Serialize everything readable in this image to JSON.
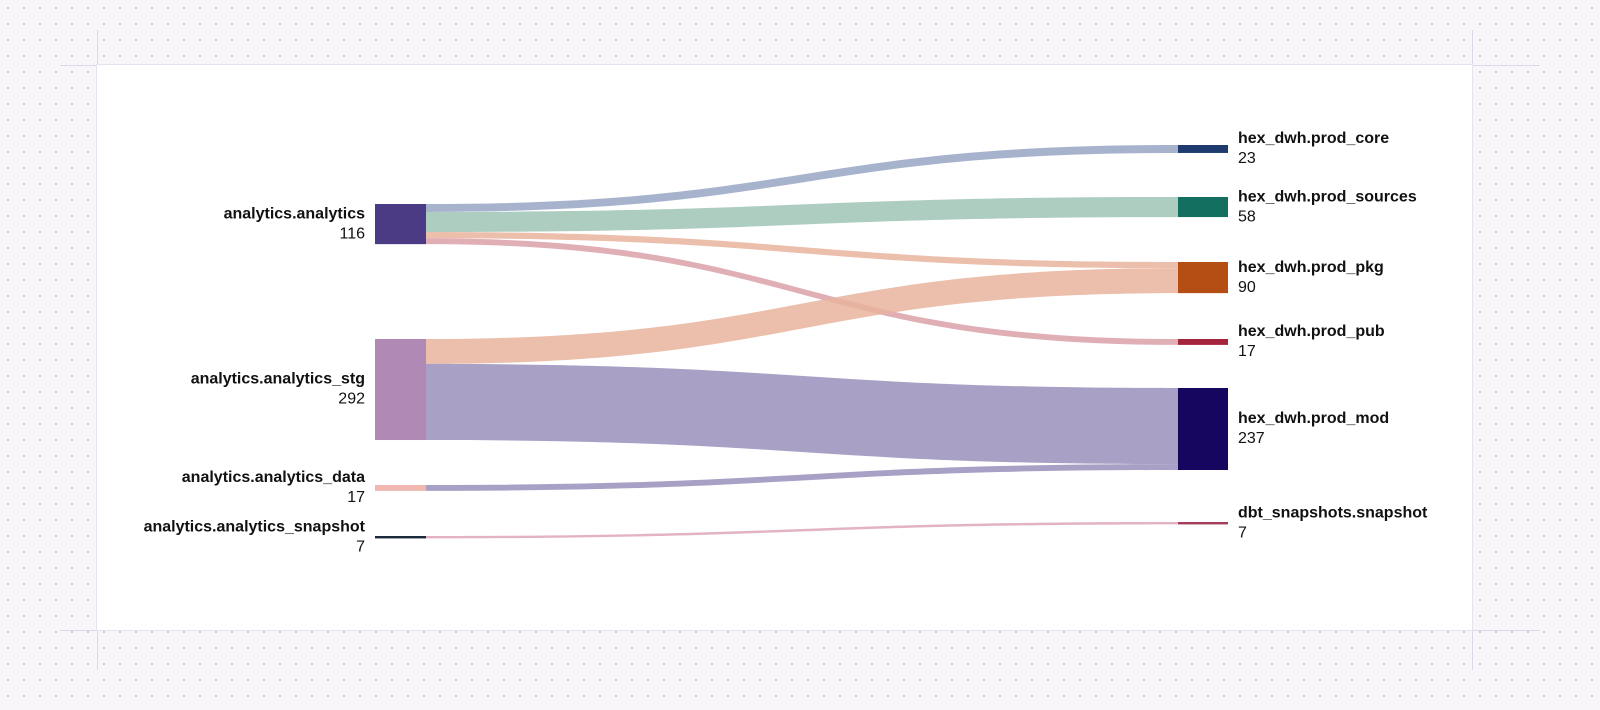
{
  "chart_data": {
    "type": "sankey",
    "nodes": [
      {
        "name": "analytics.analytics",
        "value": 116,
        "color": "#4b3b85",
        "side": "left"
      },
      {
        "name": "analytics.analytics_stg",
        "value": 292,
        "color": "#b08ab5",
        "side": "left"
      },
      {
        "name": "analytics.analytics_data",
        "value": 17,
        "color": "#f0b8b0",
        "side": "left"
      },
      {
        "name": "analytics.analytics_snapshot",
        "value": 7,
        "color": "#1a2a3a",
        "side": "left"
      },
      {
        "name": "hex_dwh.prod_core",
        "value": 23,
        "color": "#1e3a6e",
        "side": "right"
      },
      {
        "name": "hex_dwh.prod_sources",
        "value": 58,
        "color": "#137060",
        "side": "right"
      },
      {
        "name": "hex_dwh.prod_pkg",
        "value": 90,
        "color": "#b54e14",
        "side": "right"
      },
      {
        "name": "hex_dwh.prod_pub",
        "value": 17,
        "color": "#a3243c",
        "side": "right"
      },
      {
        "name": "hex_dwh.prod_mod",
        "value": 237,
        "color": "#160660",
        "side": "right"
      },
      {
        "name": "dbt_snapshots.snapshot",
        "value": 7,
        "color": "#a33d5a",
        "side": "right"
      }
    ],
    "links": [
      {
        "source": "analytics.analytics",
        "target": "hex_dwh.prod_core",
        "value": 23,
        "color": "#98a6c4"
      },
      {
        "source": "analytics.analytics",
        "target": "hex_dwh.prod_sources",
        "value": 58,
        "color": "#9fc4b6"
      },
      {
        "source": "analytics.analytics",
        "target": "hex_dwh.prod_pkg",
        "value": 18,
        "color": "#e8b49c"
      },
      {
        "source": "analytics.analytics",
        "target": "hex_dwh.prod_pub",
        "value": 17,
        "color": "#dba0a8"
      },
      {
        "source": "analytics.analytics_stg",
        "target": "hex_dwh.prod_pkg",
        "value": 72,
        "color": "#e8b49c"
      },
      {
        "source": "analytics.analytics_stg",
        "target": "hex_dwh.prod_mod",
        "value": 220,
        "color": "#9990bb"
      },
      {
        "source": "analytics.analytics_data",
        "target": "hex_dwh.prod_mod",
        "value": 17,
        "color": "#9990bb"
      },
      {
        "source": "analytics.analytics_snapshot",
        "target": "dbt_snapshots.snapshot",
        "value": 7,
        "color": "#dfa6b6"
      }
    ]
  }
}
